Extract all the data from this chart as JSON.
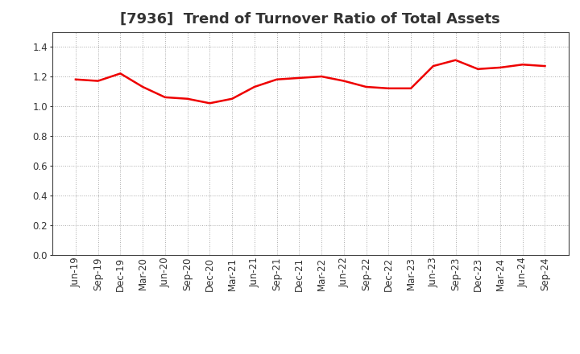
{
  "title": "[7936]  Trend of Turnover Ratio of Total Assets",
  "x_labels": [
    "Jun-19",
    "Sep-19",
    "Dec-19",
    "Mar-20",
    "Jun-20",
    "Sep-20",
    "Dec-20",
    "Mar-21",
    "Jun-21",
    "Sep-21",
    "Dec-21",
    "Mar-22",
    "Jun-22",
    "Sep-22",
    "Dec-22",
    "Mar-23",
    "Jun-23",
    "Sep-23",
    "Dec-23",
    "Mar-24",
    "Jun-24",
    "Sep-24"
  ],
  "values": [
    1.18,
    1.17,
    1.22,
    1.13,
    1.06,
    1.05,
    1.02,
    1.05,
    1.13,
    1.18,
    1.19,
    1.2,
    1.17,
    1.13,
    1.12,
    1.12,
    1.27,
    1.31,
    1.25,
    1.26,
    1.28,
    1.27
  ],
  "line_color": "#ee0000",
  "line_width": 1.8,
  "ylim": [
    0.0,
    1.5
  ],
  "yticks": [
    0.0,
    0.2,
    0.4,
    0.6,
    0.8,
    1.0,
    1.2,
    1.4
  ],
  "background_color": "#ffffff",
  "plot_bg_color": "#ffffff",
  "grid_color": "#aaaaaa",
  "title_fontsize": 13,
  "tick_fontsize": 8.5,
  "title_color": "#333333"
}
